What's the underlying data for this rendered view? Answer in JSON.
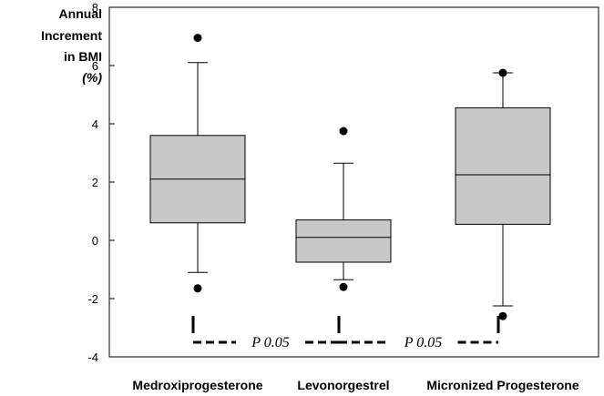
{
  "chart_data": {
    "type": "box",
    "ylabel_lines": [
      "Annual",
      "Increment",
      "in BMI"
    ],
    "ylabel_unit": "(%)",
    "ylim": [
      -4,
      8
    ],
    "yticks": [
      -4,
      -2,
      0,
      2,
      4,
      6,
      8
    ],
    "grid": false,
    "categories": [
      "Medroxiprogesterone",
      "Levonorgestrel",
      "Micronized Progesterone"
    ],
    "boxes": [
      {
        "name": "Medroxiprogesterone",
        "whisker_low": -1.1,
        "q1": 0.6,
        "median": 2.1,
        "q3": 3.6,
        "whisker_high": 6.1,
        "outliers": [
          6.95,
          -1.65
        ]
      },
      {
        "name": "Levonorgestrel",
        "whisker_low": -1.35,
        "q1": -0.75,
        "median": 0.1,
        "q3": 0.7,
        "whisker_high": 2.65,
        "outliers": [
          3.75,
          -1.6
        ]
      },
      {
        "name": "Micronized Progesterone",
        "whisker_low": -2.25,
        "q1": 0.55,
        "median": 2.25,
        "q3": 4.55,
        "whisker_high": 5.75,
        "outliers": [
          5.75,
          -2.6
        ]
      }
    ],
    "annotations": [
      {
        "text": "P 0.05",
        "between": [
          0,
          1
        ]
      },
      {
        "text": "P 0.05",
        "between": [
          1,
          2
        ]
      }
    ],
    "colors": {
      "box_fill": "#c8c8c8",
      "stroke": "#000000"
    }
  }
}
